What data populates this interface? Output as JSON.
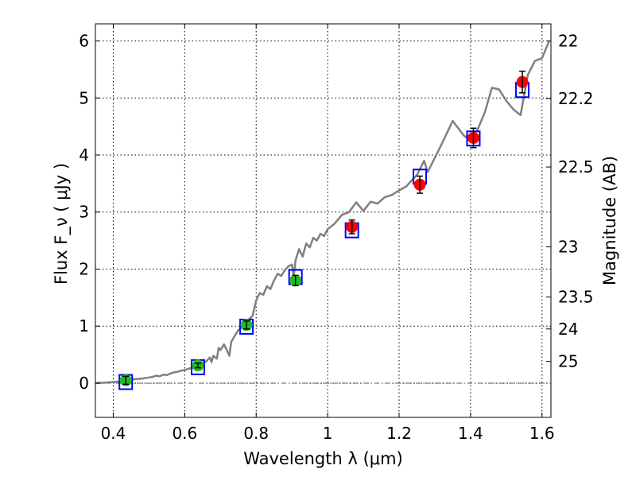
{
  "chart_data": {
    "type": "scatter",
    "xlabel": "Wavelength  λ (μm)",
    "ylabel": "Flux  F_ν  ( μJy )",
    "y2label": "Magnitude (AB)",
    "xlim": [
      0.35,
      1.625
    ],
    "ylim": [
      -0.6,
      6.3
    ],
    "grid": true,
    "x_ticks": [
      "0.4",
      "0.6",
      "0.8",
      "1",
      "1.2",
      "1.4",
      "1.6"
    ],
    "y_ticks": [
      "0",
      "1",
      "2",
      "3",
      "4",
      "5",
      "6"
    ],
    "y2_ticks": [
      {
        "label": "22",
        "flux": 6.0
      },
      {
        "label": "22.2",
        "flux": 4.99
      },
      {
        "label": "22.5",
        "flux": 3.79
      },
      {
        "label": "23",
        "flux": 2.39
      },
      {
        "label": "23.5",
        "flux": 1.51
      },
      {
        "label": "24",
        "flux": 0.95
      },
      {
        "label": "25",
        "flux": 0.38
      }
    ],
    "colors": {
      "template": "#808080",
      "model": "#0000ff",
      "optical": "#22bb22",
      "infrared": "#ff0000",
      "errorbar": "#000000",
      "zero_line": "#555555"
    },
    "series": [
      {
        "kind": "template-line",
        "x": [
          0.35,
          0.38,
          0.4,
          0.42,
          0.44,
          0.46,
          0.48,
          0.5,
          0.51,
          0.52,
          0.53,
          0.54,
          0.55,
          0.56,
          0.57,
          0.58,
          0.59,
          0.6,
          0.61,
          0.62,
          0.63,
          0.64,
          0.65,
          0.66,
          0.67,
          0.675,
          0.68,
          0.69,
          0.695,
          0.7,
          0.71,
          0.72,
          0.725,
          0.73,
          0.74,
          0.75,
          0.76,
          0.765,
          0.77,
          0.78,
          0.79,
          0.8,
          0.81,
          0.82,
          0.83,
          0.84,
          0.85,
          0.86,
          0.87,
          0.88,
          0.89,
          0.9,
          0.905,
          0.91,
          0.92,
          0.93,
          0.94,
          0.95,
          0.96,
          0.97,
          0.98,
          0.99,
          1.0,
          1.02,
          1.04,
          1.06,
          1.08,
          1.1,
          1.12,
          1.14,
          1.16,
          1.18,
          1.2,
          1.22,
          1.23,
          1.25,
          1.27,
          1.28,
          1.3,
          1.32,
          1.35,
          1.38,
          1.4,
          1.42,
          1.44,
          1.46,
          1.48,
          1.5,
          1.52,
          1.54,
          1.56,
          1.58,
          1.6,
          1.62
        ],
        "y": [
          0.0,
          0.01,
          0.02,
          0.03,
          0.05,
          0.07,
          0.08,
          0.1,
          0.11,
          0.13,
          0.12,
          0.15,
          0.14,
          0.17,
          0.19,
          0.2,
          0.22,
          0.23,
          0.25,
          0.27,
          0.26,
          0.32,
          0.36,
          0.38,
          0.45,
          0.37,
          0.48,
          0.43,
          0.62,
          0.58,
          0.68,
          0.55,
          0.48,
          0.72,
          0.83,
          0.93,
          0.98,
          0.97,
          1.05,
          1.12,
          1.18,
          1.45,
          1.58,
          1.55,
          1.7,
          1.65,
          1.8,
          1.92,
          1.88,
          1.98,
          2.05,
          2.08,
          1.86,
          2.15,
          2.35,
          2.22,
          2.45,
          2.38,
          2.55,
          2.5,
          2.62,
          2.58,
          2.7,
          2.8,
          2.95,
          3.0,
          3.17,
          3.02,
          3.18,
          3.15,
          3.26,
          3.3,
          3.38,
          3.45,
          3.52,
          3.65,
          3.9,
          3.7,
          3.95,
          4.2,
          4.6,
          4.35,
          4.25,
          4.45,
          4.75,
          5.18,
          5.15,
          4.95,
          4.8,
          4.7,
          5.4,
          5.65,
          5.7,
          6.0
        ]
      },
      {
        "kind": "model-squares",
        "x": [
          0.435,
          0.637,
          0.773,
          0.91,
          1.068,
          1.258,
          1.408,
          1.545
        ],
        "y": [
          0.02,
          0.28,
          0.99,
          1.86,
          2.68,
          3.62,
          4.29,
          5.14
        ]
      },
      {
        "kind": "optical-points",
        "x": [
          0.435,
          0.637,
          0.773,
          0.91
        ],
        "y": [
          0.05,
          0.31,
          1.02,
          1.8
        ],
        "err": [
          0.07,
          0.04,
          0.07,
          0.09
        ]
      },
      {
        "kind": "infrared-points",
        "x": [
          1.068,
          1.258,
          1.408,
          1.545
        ],
        "y": [
          2.74,
          3.48,
          4.3,
          5.28
        ],
        "err": [
          0.12,
          0.15,
          0.17,
          0.19
        ]
      }
    ]
  }
}
